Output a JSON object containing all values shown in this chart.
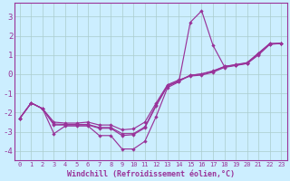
{
  "xlabel": "Windchill (Refroidissement éolien,°C)",
  "x": [
    0,
    1,
    2,
    3,
    4,
    5,
    6,
    7,
    8,
    9,
    10,
    11,
    12,
    13,
    14,
    15,
    16,
    17,
    18,
    19,
    20,
    21,
    22,
    23
  ],
  "line_spiky": [
    -2.3,
    -1.5,
    -1.8,
    -3.1,
    -2.7,
    -2.7,
    -2.7,
    -3.2,
    -3.2,
    -3.9,
    -3.9,
    -3.5,
    -2.2,
    -0.7,
    -0.4,
    2.7,
    3.3,
    1.5,
    0.4,
    0.5,
    0.6,
    1.1,
    1.6,
    1.6
  ],
  "line_smooth1": [
    -2.3,
    -1.5,
    -1.8,
    -2.5,
    -2.55,
    -2.55,
    -2.5,
    -2.65,
    -2.65,
    -2.9,
    -2.85,
    -2.5,
    -1.5,
    -0.55,
    -0.3,
    -0.1,
    -0.05,
    0.1,
    0.35,
    0.45,
    0.55,
    1.0,
    1.55,
    1.6
  ],
  "line_smooth2": [
    -2.3,
    -1.5,
    -1.8,
    -2.6,
    -2.62,
    -2.62,
    -2.62,
    -2.78,
    -2.78,
    -3.1,
    -3.1,
    -2.75,
    -1.6,
    -0.6,
    -0.35,
    -0.05,
    0.0,
    0.15,
    0.38,
    0.47,
    0.57,
    1.05,
    1.57,
    1.6
  ],
  "line_smooth3": [
    -2.3,
    -1.5,
    -1.8,
    -2.65,
    -2.65,
    -2.65,
    -2.65,
    -2.82,
    -2.82,
    -3.2,
    -3.15,
    -2.8,
    -1.65,
    -0.62,
    -0.37,
    -0.07,
    0.02,
    0.17,
    0.4,
    0.48,
    0.58,
    1.07,
    1.58,
    1.6
  ],
  "line_color": "#993399",
  "bg_color": "#cceeff",
  "grid_color": "#aacccc",
  "ylim": [
    -4.5,
    3.7
  ],
  "yticks": [
    -4,
    -3,
    -2,
    -1,
    0,
    1,
    2,
    3
  ],
  "xticks": [
    0,
    1,
    2,
    3,
    4,
    5,
    6,
    7,
    8,
    9,
    10,
    11,
    12,
    13,
    14,
    15,
    16,
    17,
    18,
    19,
    20,
    21,
    22,
    23
  ]
}
